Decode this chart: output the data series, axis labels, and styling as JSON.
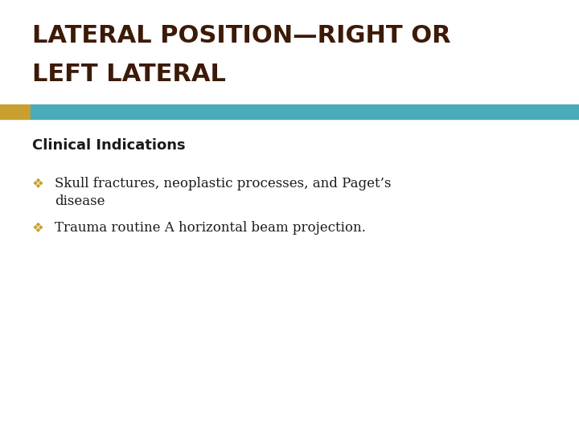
{
  "title_line1": "LATERAL POSITION—RIGHT OR",
  "title_line2": "LEFT LATERAL",
  "title_color": "#3D1A08",
  "title_fontsize": 22,
  "bar_color_gold": "#C8A030",
  "bar_color_teal": "#4AABB8",
  "section_label": "Clinical Indications",
  "section_label_fontsize": 13,
  "section_label_color": "#1a1a1a",
  "bullet_color": "#C8A030",
  "bullet_char": "❖",
  "bullet_fontsize": 12,
  "bullet1_line1": "Skull fractures, neoplastic processes, and Paget’s",
  "bullet1_line2": "disease",
  "bullet2": "Trauma routine A horizontal beam projection.",
  "bullet_text_color": "#1a1a1a",
  "background_color": "#ffffff"
}
